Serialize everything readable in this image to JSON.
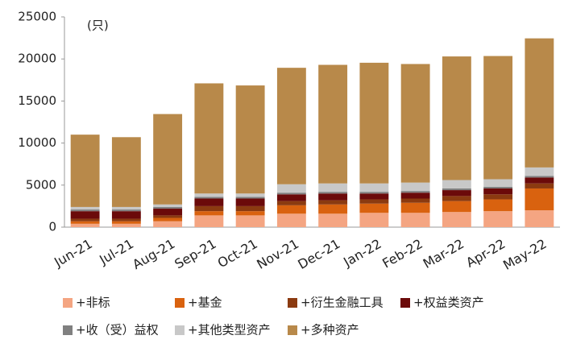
{
  "chart_data": {
    "type": "stacked-bar",
    "y_label": "(只)",
    "categories": [
      "Jun-21",
      "Jul-21",
      "Aug-21",
      "Sep-21",
      "Oct-21",
      "Nov-21",
      "Dec-21",
      "Jan-22",
      "Feb-22",
      "Mar-22",
      "Apr-22",
      "May-22"
    ],
    "series": [
      {
        "name": "+非标",
        "color": "#f4a582",
        "values": [
          400,
          400,
          700,
          1400,
          1400,
          1600,
          1600,
          1700,
          1700,
          1800,
          1900,
          2000
        ]
      },
      {
        "name": "+基金",
        "color": "#d9620f",
        "values": [
          300,
          300,
          400,
          500,
          500,
          1000,
          1100,
          1100,
          1200,
          1300,
          1400,
          2600
        ]
      },
      {
        "name": "+衍生金融工具",
        "color": "#8b3a10",
        "values": [
          300,
          300,
          300,
          600,
          600,
          500,
          500,
          500,
          500,
          600,
          600,
          600
        ]
      },
      {
        "name": "+权益类资产",
        "color": "#6b0a0a",
        "values": [
          900,
          900,
          800,
          900,
          900,
          800,
          800,
          700,
          700,
          700,
          700,
          700
        ]
      },
      {
        "name": "+收（受）益权",
        "color": "#808080",
        "values": [
          200,
          200,
          200,
          200,
          200,
          200,
          200,
          200,
          200,
          200,
          200,
          200
        ]
      },
      {
        "name": "+其他类型资产",
        "color": "#c8c8c8",
        "values": [
          300,
          300,
          300,
          400,
          400,
          1000,
          1000,
          1000,
          1000,
          1000,
          900,
          1000
        ]
      },
      {
        "name": "+多种资产",
        "color": "#b8894a",
        "values": [
          8600,
          8300,
          10750,
          13100,
          12850,
          13850,
          14100,
          14350,
          14100,
          14700,
          14650,
          15350
        ]
      }
    ],
    "ylim": [
      0,
      25000
    ],
    "yticks": [
      0,
      5000,
      10000,
      15000,
      20000,
      25000
    ]
  }
}
